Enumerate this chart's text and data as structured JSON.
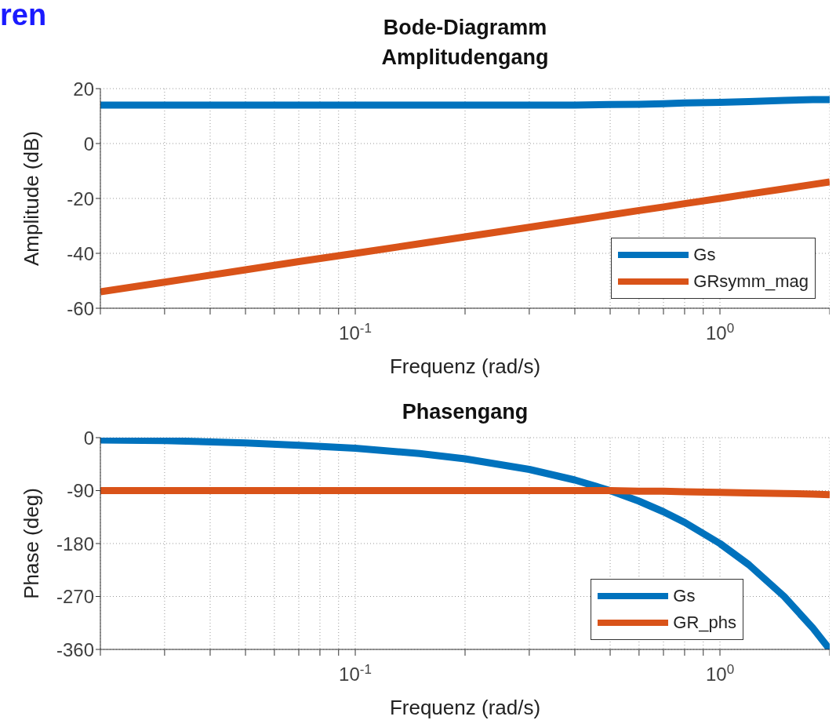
{
  "chart_data": [
    {
      "type": "line",
      "title": "Bode-Diagramm",
      "subtitle": "Amplitudengang",
      "xlabel": "Frequenz  (rad/s)",
      "ylabel": "Amplitude (dB)",
      "annotations": [
        "ren"
      ],
      "log": "x",
      "grid": true,
      "legend": "bottom right",
      "marker": "none",
      "line_style": "solid",
      "x": [
        0.02,
        0.03,
        0.05,
        0.07,
        0.1,
        0.15,
        0.2,
        0.3,
        0.4,
        0.5,
        0.6,
        0.7,
        0.8,
        1,
        1.2,
        1.5,
        1.8,
        2
      ],
      "xlim": [
        0.02,
        2
      ],
      "xticks": [
        {
          "value": 0.02,
          "label": null
        },
        {
          "value": 0.03,
          "label": null
        },
        {
          "value": 0.04,
          "label": null
        },
        {
          "value": 0.05,
          "label": null
        },
        {
          "value": 0.06,
          "label": null
        },
        {
          "value": 0.07,
          "label": null
        },
        {
          "value": 0.08,
          "label": null
        },
        {
          "value": 0.09,
          "label": null
        },
        {
          "value": 0.1,
          "label": "10$^{-1}$"
        },
        {
          "value": 0.2,
          "label": null
        },
        {
          "value": 0.3,
          "label": null
        },
        {
          "value": 0.4,
          "label": null
        },
        {
          "value": 0.5,
          "label": null
        },
        {
          "value": 0.6,
          "label": null
        },
        {
          "value": 0.7,
          "label": null
        },
        {
          "value": 0.8,
          "label": null
        },
        {
          "value": 0.9,
          "label": null
        },
        {
          "value": 1,
          "label": "10$^{0}$"
        },
        {
          "value": 2,
          "label": null
        }
      ],
      "ylim": [
        -60,
        20
      ],
      "yticks": [
        -60,
        -40,
        -20,
        0,
        20
      ],
      "series": [
        {
          "name": "Gs",
          "color": "#0072bd",
          "values": [
            14,
            14,
            14,
            14,
            14,
            14,
            14,
            14,
            14,
            14.2,
            14.3,
            14.5,
            14.8,
            15,
            15.3,
            15.7,
            16,
            16
          ]
        },
        {
          "name": "GRsymm_mag",
          "color": "#d95319",
          "values": [
            -54,
            -50.5,
            -46,
            -43,
            -40,
            -36.5,
            -34,
            -30.5,
            -28,
            -26,
            -24.4,
            -23.1,
            -21.9,
            -20,
            -18.4,
            -16.5,
            -14.9,
            -14
          ]
        }
      ]
    },
    {
      "type": "line",
      "title": "Phasengang",
      "xlabel": "Frequenz  (rad/s)",
      "ylabel": "Phase (deg)",
      "log": "x",
      "grid": true,
      "legend": "bottom right",
      "marker": "none",
      "line_style": "solid",
      "x": [
        0.02,
        0.03,
        0.05,
        0.07,
        0.1,
        0.15,
        0.2,
        0.3,
        0.4,
        0.5,
        0.6,
        0.7,
        0.8,
        1,
        1.2,
        1.5,
        1.8,
        2
      ],
      "xlim": [
        0.02,
        2
      ],
      "xticks": [
        {
          "value": 0.02,
          "label": null
        },
        {
          "value": 0.03,
          "label": null
        },
        {
          "value": 0.04,
          "label": null
        },
        {
          "value": 0.05,
          "label": null
        },
        {
          "value": 0.06,
          "label": null
        },
        {
          "value": 0.07,
          "label": null
        },
        {
          "value": 0.08,
          "label": null
        },
        {
          "value": 0.09,
          "label": null
        },
        {
          "value": 0.1,
          "label": "10$^{-1}$"
        },
        {
          "value": 0.2,
          "label": null
        },
        {
          "value": 0.3,
          "label": null
        },
        {
          "value": 0.4,
          "label": null
        },
        {
          "value": 0.5,
          "label": null
        },
        {
          "value": 0.6,
          "label": null
        },
        {
          "value": 0.7,
          "label": null
        },
        {
          "value": 0.8,
          "label": null
        },
        {
          "value": 0.9,
          "label": null
        },
        {
          "value": 1,
          "label": "10$^{0}$"
        },
        {
          "value": 2,
          "label": null
        }
      ],
      "ylim": [
        -360,
        0
      ],
      "yticks": [
        -360,
        -270,
        -180,
        -90,
        0
      ],
      "series": [
        {
          "name": "Gs",
          "color": "#0072bd",
          "values": [
            -4,
            -5,
            -9,
            -13,
            -18,
            -27,
            -36,
            -54,
            -72,
            -90,
            -108,
            -126,
            -144,
            -180,
            -216,
            -270,
            -324,
            -360
          ]
        },
        {
          "name": "GR_phs",
          "color": "#d95319",
          "values": [
            -90,
            -90,
            -90,
            -90,
            -90,
            -90,
            -90,
            -90,
            -90,
            -90,
            -91,
            -91,
            -92,
            -93,
            -94,
            -95,
            -96,
            -97
          ]
        }
      ]
    }
  ]
}
